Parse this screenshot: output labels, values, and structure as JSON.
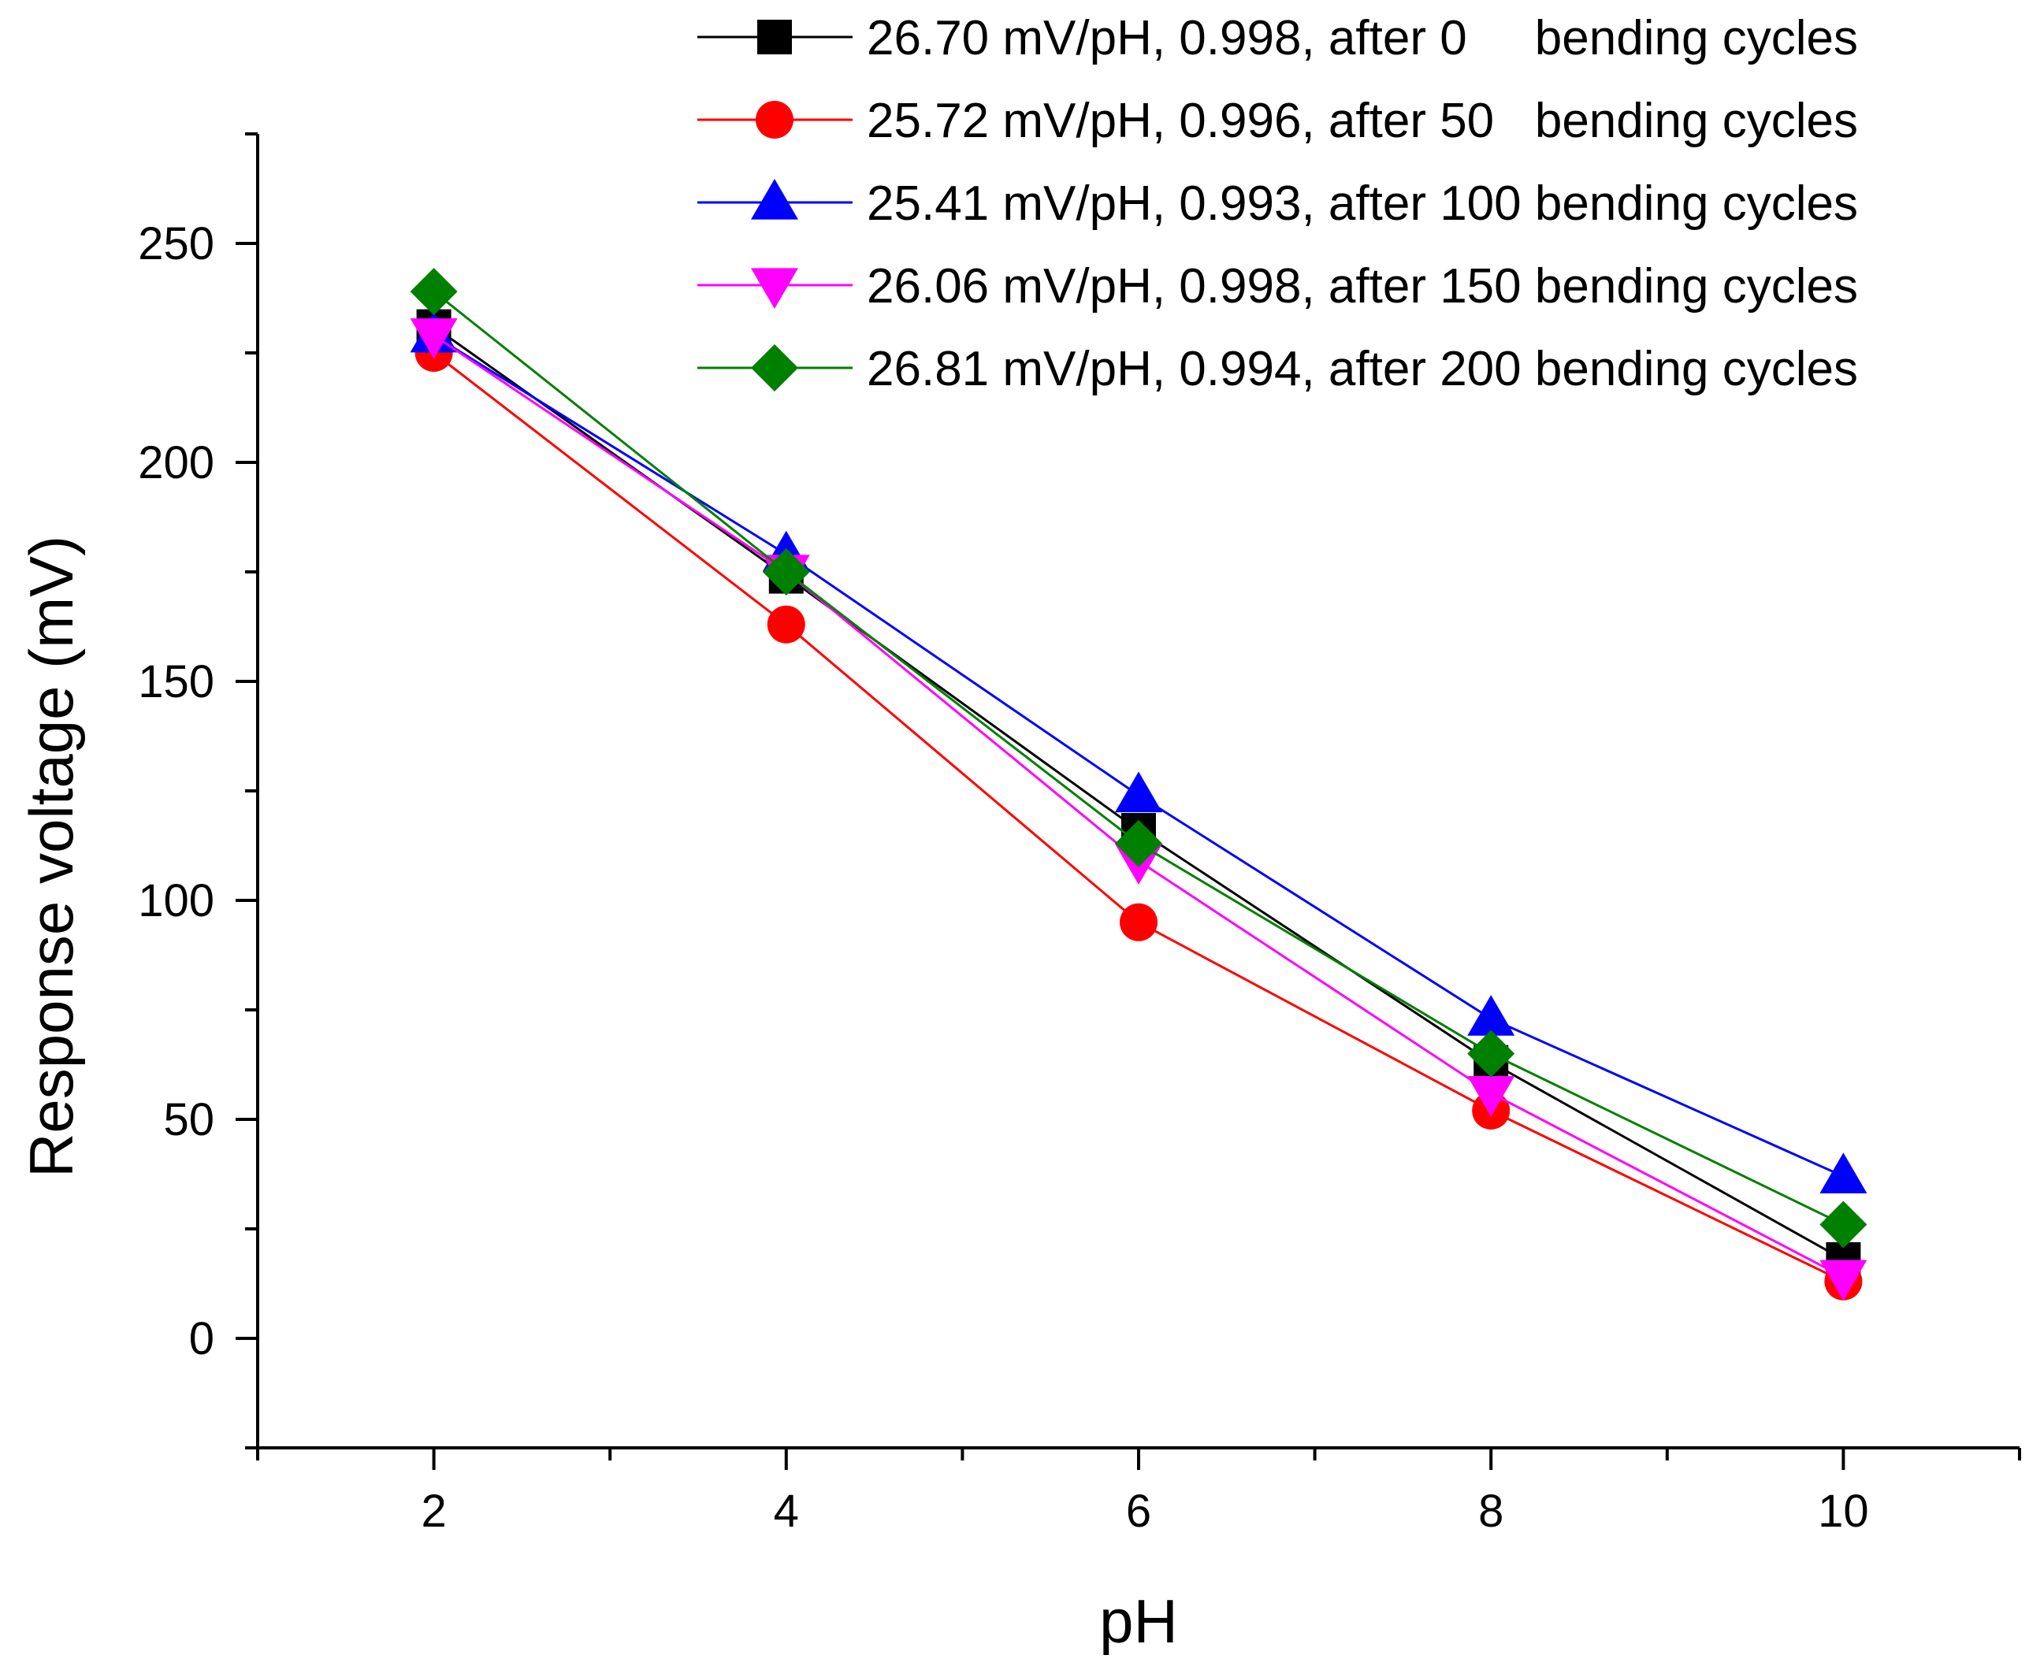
{
  "chart_data": {
    "type": "line",
    "title": "",
    "xlabel": "pH",
    "ylabel": "Response voltage (mV)",
    "xlim": [
      1,
      11
    ],
    "ylim": [
      -25,
      275
    ],
    "xticks": [
      2,
      4,
      6,
      8,
      10
    ],
    "yticks": [
      0,
      50,
      100,
      150,
      200,
      250
    ],
    "legend_position": "top-right",
    "grid": false,
    "x": [
      2,
      4,
      6,
      8,
      10
    ],
    "series": [
      {
        "name": "26.70 mV/pH, 0.998, after 0     bending cycles",
        "marker": "square",
        "color": "#000000",
        "values": [
          231,
          174,
          116,
          63,
          18
        ]
      },
      {
        "name": "25.72 mV/pH, 0.996, after 50   bending cycles",
        "marker": "circle",
        "color": "#ff0000",
        "values": [
          225,
          163,
          95,
          52,
          13
        ]
      },
      {
        "name": "25.41 mV/pH, 0.993, after 100 bending cycles",
        "marker": "triangle-up",
        "color": "#0000ff",
        "values": [
          229,
          179,
          124,
          73,
          37
        ]
      },
      {
        "name": "26.06 mV/pH, 0.998, after 150 bending cycles",
        "marker": "triangle-down",
        "color": "#ff00ff",
        "values": [
          229,
          175,
          109,
          56,
          14
        ]
      },
      {
        "name": "26.81 mV/pH, 0.994, after 200 bending cycles",
        "marker": "diamond",
        "color": "#008000",
        "values": [
          239,
          175,
          113,
          65,
          26
        ]
      }
    ]
  }
}
